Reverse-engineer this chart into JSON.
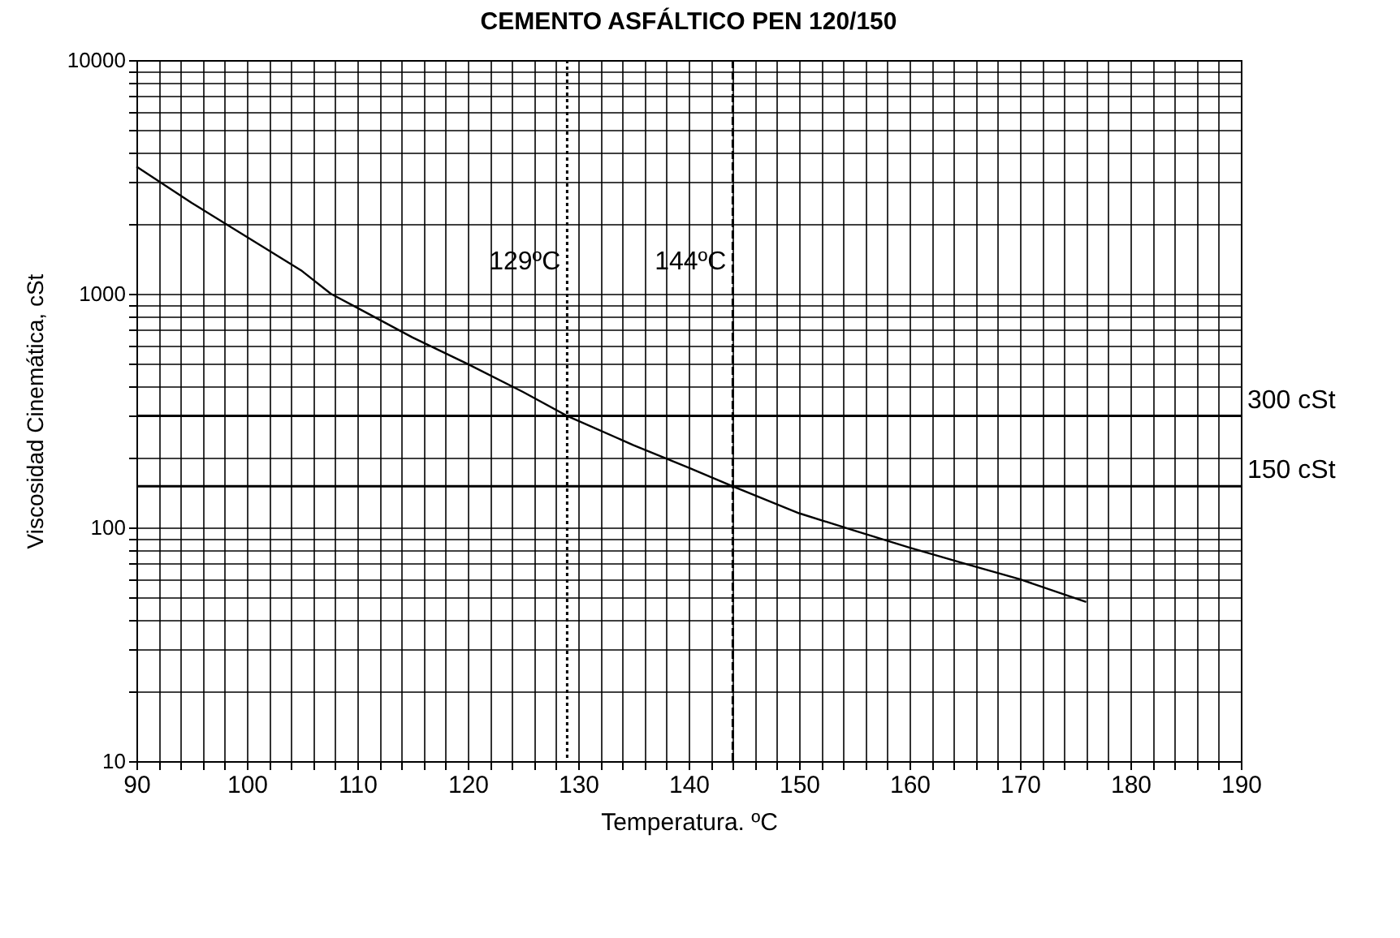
{
  "chart_data": {
    "type": "line",
    "title": "CEMENTO ASFÁLTICO PEN 120/150",
    "xlabel": "Temperatura. ºC",
    "ylabel": "Viscosidad Cinemática, cSt",
    "x": [
      90,
      95,
      100,
      105,
      107.6,
      110,
      115,
      120,
      125,
      129,
      135,
      140,
      144,
      150,
      155,
      160,
      165,
      170,
      176
    ],
    "series": [
      {
        "color": "#000000",
        "values": [
          3500,
          2450,
          1750,
          1250,
          1000,
          870,
          650,
          500,
          380,
          300,
          225,
          180,
          150,
          115,
          97,
          82,
          70,
          60,
          48
        ]
      }
    ],
    "log": "y",
    "grid": true,
    "marker": "none",
    "line_style": "solid",
    "xlim": [
      90,
      190
    ],
    "xticks": [
      90,
      {
        "value": 92,
        "label": null
      },
      {
        "value": 94,
        "label": null
      },
      {
        "value": 96,
        "label": null
      },
      {
        "value": 98,
        "label": null
      },
      100,
      {
        "value": 102,
        "label": null
      },
      {
        "value": 104,
        "label": null
      },
      {
        "value": 106,
        "label": null
      },
      {
        "value": 108,
        "label": null
      },
      110,
      {
        "value": 112,
        "label": null
      },
      {
        "value": 114,
        "label": null
      },
      {
        "value": 116,
        "label": null
      },
      {
        "value": 118,
        "label": null
      },
      120,
      {
        "value": 122,
        "label": null
      },
      {
        "value": 124,
        "label": null
      },
      {
        "value": 126,
        "label": null
      },
      {
        "value": 128,
        "label": null
      },
      130,
      {
        "value": 132,
        "label": null
      },
      {
        "value": 134,
        "label": null
      },
      {
        "value": 136,
        "label": null
      },
      {
        "value": 138,
        "label": null
      },
      140,
      {
        "value": 142,
        "label": null
      },
      {
        "value": 144,
        "label": null
      },
      {
        "value": 146,
        "label": null
      },
      {
        "value": 148,
        "label": null
      },
      150,
      {
        "value": 152,
        "label": null
      },
      {
        "value": 154,
        "label": null
      },
      {
        "value": 156,
        "label": null
      },
      {
        "value": 158,
        "label": null
      },
      160,
      {
        "value": 162,
        "label": null
      },
      {
        "value": 164,
        "label": null
      },
      {
        "value": 166,
        "label": null
      },
      {
        "value": 168,
        "label": null
      },
      170,
      {
        "value": 172,
        "label": null
      },
      {
        "value": 174,
        "label": null
      },
      {
        "value": 176,
        "label": null
      },
      {
        "value": 178,
        "label": null
      },
      180,
      {
        "value": 182,
        "label": null
      },
      {
        "value": 184,
        "label": null
      },
      {
        "value": 186,
        "label": null
      },
      {
        "value": 188,
        "label": null
      },
      190
    ],
    "ylim": [
      10,
      10000
    ],
    "yticks": [
      10,
      {
        "value": 20,
        "label": null
      },
      {
        "value": 30,
        "label": null
      },
      {
        "value": 40,
        "label": null
      },
      {
        "value": 50,
        "label": null
      },
      {
        "value": 60,
        "label": null
      },
      {
        "value": 70,
        "label": null
      },
      {
        "value": 80,
        "label": null
      },
      {
        "value": 90,
        "label": null
      },
      100,
      {
        "value": 200,
        "label": null
      },
      {
        "value": 300,
        "label": null
      },
      {
        "value": 400,
        "label": null
      },
      {
        "value": 500,
        "label": null
      },
      {
        "value": 600,
        "label": null
      },
      {
        "value": 700,
        "label": null
      },
      {
        "value": 800,
        "label": null
      },
      {
        "value": 900,
        "label": null
      },
      1000,
      {
        "value": 2000,
        "label": null
      },
      {
        "value": 3000,
        "label": null
      },
      {
        "value": 4000,
        "label": null
      },
      {
        "value": 5000,
        "label": null
      },
      {
        "value": 6000,
        "label": null
      },
      {
        "value": 7000,
        "label": null
      },
      {
        "value": 8000,
        "label": null
      },
      {
        "value": 9000,
        "label": null
      },
      10000
    ],
    "ref_lines": [
      {
        "axis": "x",
        "value": 129,
        "label": "129ºC",
        "line_style": "dotted"
      },
      {
        "axis": "x",
        "value": 144,
        "label": "144ºC",
        "line_style": "dashed"
      },
      {
        "axis": "y",
        "value": 300,
        "label": "300  cSt",
        "line_style": "solid"
      },
      {
        "axis": "y",
        "value": 150,
        "label": "150  cSt",
        "line_style": "solid"
      }
    ]
  }
}
